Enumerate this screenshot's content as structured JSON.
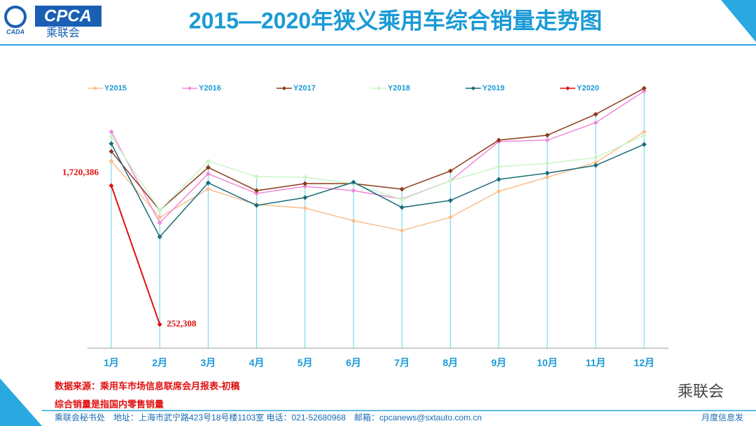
{
  "header": {
    "logo": "CPCA",
    "logo_cn": "乘联会",
    "logo_small": "CADA"
  },
  "chart_data": {
    "type": "line",
    "title": "2015—2020年狭义乘用车综合销量走势图",
    "categories": [
      "1月",
      "2月",
      "3月",
      "4月",
      "5月",
      "6月",
      "7月",
      "8月",
      "9月",
      "10月",
      "11月",
      "12月"
    ],
    "ylim": [
      0,
      3000000
    ],
    "legend": "top",
    "series": [
      {
        "name": "Y2015",
        "color": "#f9c08f",
        "values": [
          1980000,
          1386000,
          1683000,
          1520000,
          1483000,
          1349000,
          1246000,
          1386000,
          1661000,
          1809000,
          1965000,
          2291000
        ]
      },
      {
        "name": "Y2016",
        "color": "#f08ad8",
        "values": [
          2291000,
          1327000,
          1846000,
          1638000,
          1713000,
          1668000,
          1579000,
          1772000,
          2187000,
          2202000,
          2387000,
          2721000
        ]
      },
      {
        "name": "Y2017",
        "color": "#8b3a1a",
        "values": [
          2083000,
          1461000,
          1913000,
          1668000,
          1742000,
          1742000,
          1683000,
          1876000,
          2202000,
          2254000,
          2476000,
          2751000
        ]
      },
      {
        "name": "Y2018",
        "color": "#c8f5c8",
        "values": [
          2239000,
          1461000,
          1980000,
          1816000,
          1809000,
          1742000,
          1572000,
          1772000,
          1920000,
          1957000,
          2017000,
          2254000
        ]
      },
      {
        "name": "Y2019",
        "color": "#1a6b7a",
        "values": [
          2165000,
          1179000,
          1750000,
          1512000,
          1594000,
          1757000,
          1490000,
          1564000,
          1787000,
          1853000,
          1935000,
          2157000
        ]
      },
      {
        "name": "Y2020",
        "color": "#e01010",
        "values": [
          1720386,
          252308,
          null,
          null,
          null,
          null,
          null,
          null,
          null,
          null,
          null,
          null
        ],
        "value_labels": [
          "1,720,386",
          "252,308",
          null,
          null,
          null,
          null,
          null,
          null,
          null,
          null,
          null,
          null
        ]
      }
    ]
  },
  "notes": [
    "数据来源：乘用车市场信息联席会月报表-初稿",
    "综合销量是指国内零售销量"
  ],
  "watermark": "乘联会",
  "footer": {
    "address": "乘联会秘书处　地址：上海市武宁路423号18号楼1103室 电话：021-52680968　邮箱：cpcanews@sxtauto.com.cn",
    "right": "月度信息发"
  }
}
